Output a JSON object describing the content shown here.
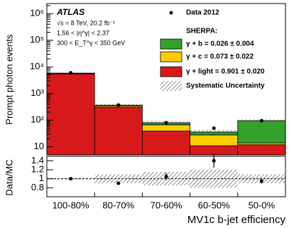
{
  "chart_data": [
    {
      "type": "stacked_bar",
      "ylabel": "Prompt photon events",
      "log_scale": true,
      "categories": [
        "100-80%",
        "80-70%",
        "70-60%",
        "60-50%",
        "50-0%"
      ],
      "series": [
        {
          "name": "γ + light = 0.901 ± 0.020",
          "color": "#d7191c",
          "values": [
            5500,
            310,
            39,
            11,
            12
          ]
        },
        {
          "name": "γ + c = 0.073 ± 0.022",
          "color": "#ffcc00",
          "values": [
            250,
            40,
            28,
            17,
            2
          ]
        },
        {
          "name": "γ + b = 0.026 ± 0.004",
          "color": "#33a02c",
          "values": [
            100,
            15,
            13,
            8,
            82
          ]
        }
      ],
      "data": {
        "name": "Data 2012",
        "values": [
          6000,
          370,
          80,
          50,
          95
        ]
      },
      "legend_title": "SHERPA:",
      "band_name": "Systematic Uncertainty",
      "annotations": [
        "ATLAS",
        "√s = 8 TeV, 20.2 fb⁻¹",
        "1.56 < |η^γ| < 2.37",
        "300 < E_T^γ < 350 GeV"
      ],
      "ylim": [
        5,
        2400000
      ],
      "yticks": [
        10,
        {
          "value": 100,
          "label": "10²"
        },
        {
          "value": 1000,
          "label": "10³"
        },
        {
          "value": 10000,
          "label": "10⁴"
        },
        {
          "value": 100000,
          "label": "10⁵"
        },
        {
          "value": 1000000,
          "label": "10⁶"
        }
      ]
    },
    {
      "type": "errorbar",
      "ylabel": "Data/MC",
      "xlabel": "MV1c b-jet efficiency",
      "categories": [
        "100-80%",
        "80-70%",
        "70-60%",
        "60-50%",
        "50-0%"
      ],
      "values": [
        1.0,
        0.9,
        1.05,
        1.4,
        0.95
      ],
      "errors": [
        0.02,
        0.03,
        0.08,
        0.15,
        0.06
      ],
      "syst": [
        0.02,
        0.1,
        0.15,
        0.2,
        0.1
      ],
      "ylim": [
        0.6,
        1.5
      ],
      "yticks": [
        0.8,
        1,
        1.2,
        1.4
      ]
    }
  ]
}
